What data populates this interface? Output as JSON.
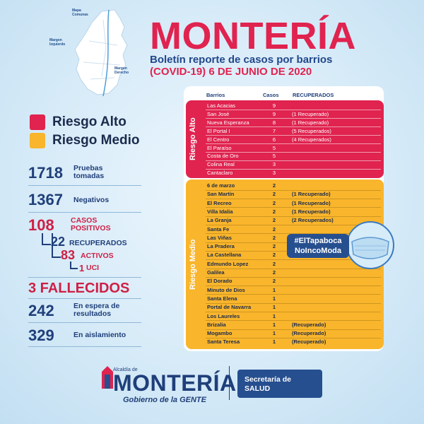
{
  "map": {
    "labels": {
      "mapa": "Mapa\nComunas",
      "izq": "Margen\nIzquierdo",
      "der": "Margen\nDerecho"
    }
  },
  "header": {
    "title": "MONTERÍA",
    "subtitle": "Boletín reporte de casos por barrios",
    "subtitle2": "(COVID-19) 6  DE JUNIO DE 2020"
  },
  "legend": {
    "alto": "Riesgo Alto",
    "medio": "Riesgo Medio",
    "alto_color": "#e0234f",
    "medio_color": "#f9b52c"
  },
  "stats": {
    "pruebas_num": "1718",
    "pruebas_lab": "Pruebas\ntomadas",
    "negativos_num": "1367",
    "negativos_lab": "Negativos",
    "positivos_num": "108",
    "positivos_lab": "CASOS\nPOSITIVOS",
    "recuperados_num": "22",
    "recuperados_lab": "RECUPERADOS",
    "activos_num": "83",
    "activos_lab": "ACTIVOS",
    "uci_num": "1",
    "uci_lab": "UCI",
    "fallecidos": "3 FALLECIDOS",
    "espera_num": "242",
    "espera_lab": "En espera de\nresultados",
    "aislamiento_num": "329",
    "aislamiento_lab": "En aislamiento"
  },
  "table": {
    "headers": {
      "barrios": "Barrios",
      "casos": "Casos",
      "recuperados": "RECUPERADOS"
    },
    "alto_label": "Riesgo Alto",
    "medio_label": "Riesgo Medio",
    "alto_rows": [
      {
        "barrio": "Las Acacias",
        "casos": "9",
        "rec": ""
      },
      {
        "barrio": "San José",
        "casos": "9",
        "rec": "(1 Recuperado)"
      },
      {
        "barrio": "Nueva Esperanza",
        "casos": "8",
        "rec": "(1 Recuperado)"
      },
      {
        "barrio": "El Portal I",
        "casos": "7",
        "rec": "(5 Recuperados)"
      },
      {
        "barrio": "El Centro",
        "casos": "6",
        "rec": "(4 Recuperados)"
      },
      {
        "barrio": "El Paraíso",
        "casos": "5",
        "rec": ""
      },
      {
        "barrio": "Costa de Oro",
        "casos": "5",
        "rec": ""
      },
      {
        "barrio": "Colina Real",
        "casos": "3",
        "rec": ""
      },
      {
        "barrio": "Cantaclaro",
        "casos": "3",
        "rec": ""
      }
    ],
    "medio_rows": [
      {
        "barrio": "6 de marzo",
        "casos": "2",
        "rec": ""
      },
      {
        "barrio": "San Martín",
        "casos": "2",
        "rec": "(1 Recuperado)"
      },
      {
        "barrio": "El Recreo",
        "casos": "2",
        "rec": "(1 Recuperado)"
      },
      {
        "barrio": "Villa Idalia",
        "casos": "2",
        "rec": "(1 Recuperado)"
      },
      {
        "barrio": "La Granja",
        "casos": "2",
        "rec": "(2 Recuperados)"
      },
      {
        "barrio": "Santa Fe",
        "casos": "2",
        "rec": ""
      },
      {
        "barrio": "Las Viñas",
        "casos": "2",
        "rec": ""
      },
      {
        "barrio": "La Pradera",
        "casos": "2",
        "rec": ""
      },
      {
        "barrio": "La Castellana",
        "casos": "2",
        "rec": ""
      },
      {
        "barrio": "Edmundo Lopez",
        "casos": "2",
        "rec": ""
      },
      {
        "barrio": "Galilea",
        "casos": "2",
        "rec": ""
      },
      {
        "barrio": "El Dorado",
        "casos": "2",
        "rec": ""
      },
      {
        "barrio": "Minuto de Dios",
        "casos": "1",
        "rec": ""
      },
      {
        "barrio": "Santa Elena",
        "casos": "1",
        "rec": ""
      },
      {
        "barrio": "Portal de Navarra",
        "casos": "1",
        "rec": ""
      },
      {
        "barrio": "Los Laureles",
        "casos": "1",
        "rec": ""
      },
      {
        "barrio": "Brizalia",
        "casos": "1",
        "rec": "(Recuperado)"
      },
      {
        "barrio": "Mogambo",
        "casos": "1",
        "rec": "(Recuperado)"
      },
      {
        "barrio": "Santa Teresa",
        "casos": "1",
        "rec": "(Recuperado)"
      }
    ]
  },
  "hashtag": {
    "line1": "#ElTapaboca",
    "line2": "NoIncoModa"
  },
  "footer": {
    "alcaldia": "Alcaldía de",
    "logo": "MONTERÍA",
    "tagline": "Gobierno de la GENTE",
    "secretaria": "Secretaría de",
    "salud": "SALUD"
  }
}
